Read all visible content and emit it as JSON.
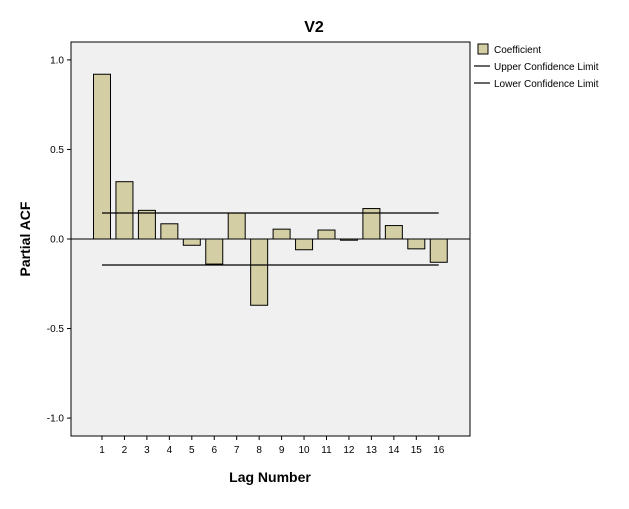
{
  "chart_data": {
    "type": "bar",
    "title": "V2",
    "xlabel": "Lag Number",
    "ylabel": "Partial ACF",
    "categories": [
      "1",
      "2",
      "3",
      "4",
      "5",
      "6",
      "7",
      "8",
      "9",
      "10",
      "11",
      "12",
      "13",
      "14",
      "15",
      "16"
    ],
    "series": [
      {
        "name": "Coefficient",
        "values": [
          0.92,
          0.32,
          0.16,
          0.085,
          -0.035,
          -0.14,
          0.145,
          -0.37,
          0.055,
          -0.06,
          0.05,
          -0.005,
          0.17,
          0.075,
          -0.055,
          -0.13
        ]
      }
    ],
    "upper_confidence_limit": 0.145,
    "lower_confidence_limit": -0.145,
    "ylim": [
      -1.1,
      1.1
    ],
    "yticks": [
      -1.0,
      -0.5,
      0.0,
      0.5,
      1.0
    ],
    "ytick_labels": [
      "-1.0",
      "-0.5",
      "0.0",
      "0.5",
      "1.0"
    ],
    "legend": {
      "position": "top-right",
      "items": [
        "Coefficient",
        "Upper Confidence Limit",
        "Lower Confidence Limit"
      ]
    },
    "grid": false,
    "colors": {
      "plot_background": "#f0f0f0",
      "bar_fill": "#d3cea3",
      "bar_stroke": "#000000",
      "line": "#000000"
    }
  }
}
